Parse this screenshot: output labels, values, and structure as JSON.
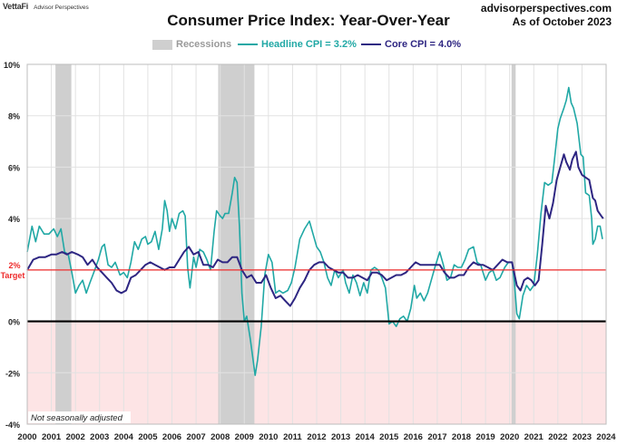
{
  "brand": {
    "name": "VettaFi",
    "sub": "Advisor Perspectives"
  },
  "header": {
    "title": "Consumer Price Index: Year-Over-Year",
    "site": "advisorperspectives.com",
    "as_of": "As of October 2023"
  },
  "legend": {
    "recessions": "Recessions",
    "headline": "Headline CPI = 3.2%",
    "core": "Core CPI =  4.0%"
  },
  "colors": {
    "headline": "#20a8a5",
    "core": "#2e2682",
    "recession": "#cfcfcf",
    "target_line": "#ee2b2b",
    "negative_zone": "#fde4e5"
  },
  "chart_data": {
    "type": "line",
    "title": "Consumer Price Index: Year-Over-Year",
    "xlim": [
      2000,
      2024
    ],
    "ylim": [
      -4,
      10
    ],
    "x_ticks": [
      "2000",
      "2001",
      "2002",
      "2003",
      "2004",
      "2005",
      "2006",
      "2007",
      "2008",
      "2009",
      "2010",
      "2011",
      "2012",
      "2013",
      "2014",
      "2015",
      "2016",
      "2017",
      "2018",
      "2019",
      "2020",
      "2021",
      "2022",
      "2023",
      "2024"
    ],
    "y_ticks": [
      "-4%",
      "-2%",
      "0%",
      "2%",
      "4%",
      "6%",
      "8%",
      "10%"
    ],
    "y_tick_values": [
      -4,
      -2,
      0,
      2,
      4,
      6,
      8,
      10
    ],
    "target": {
      "value": 2,
      "label_value": "2%",
      "label": "Target"
    },
    "recessions": [
      [
        2001.17,
        2001.83
      ],
      [
        2007.92,
        2009.42
      ],
      [
        2020.08,
        2020.25
      ]
    ],
    "note": "Not seasonally adjusted",
    "series": [
      {
        "name": "Headline CPI = 3.2%",
        "key": "headline",
        "points": [
          [
            2000.0,
            2.7
          ],
          [
            2000.2,
            3.7
          ],
          [
            2000.35,
            3.1
          ],
          [
            2000.5,
            3.7
          ],
          [
            2000.7,
            3.4
          ],
          [
            2000.9,
            3.4
          ],
          [
            2001.1,
            3.6
          ],
          [
            2001.25,
            3.3
          ],
          [
            2001.4,
            3.6
          ],
          [
            2001.55,
            2.7
          ],
          [
            2001.7,
            2.6
          ],
          [
            2001.85,
            1.9
          ],
          [
            2002.0,
            1.1
          ],
          [
            2002.15,
            1.4
          ],
          [
            2002.3,
            1.6
          ],
          [
            2002.45,
            1.1
          ],
          [
            2002.6,
            1.5
          ],
          [
            2002.8,
            2.0
          ],
          [
            2002.95,
            2.4
          ],
          [
            2003.1,
            2.9
          ],
          [
            2003.2,
            3.0
          ],
          [
            2003.35,
            2.2
          ],
          [
            2003.5,
            2.1
          ],
          [
            2003.65,
            2.3
          ],
          [
            2003.85,
            1.8
          ],
          [
            2004.0,
            1.9
          ],
          [
            2004.15,
            1.7
          ],
          [
            2004.3,
            2.3
          ],
          [
            2004.45,
            3.1
          ],
          [
            2004.6,
            2.8
          ],
          [
            2004.75,
            3.2
          ],
          [
            2004.9,
            3.3
          ],
          [
            2005.0,
            3.0
          ],
          [
            2005.15,
            3.1
          ],
          [
            2005.3,
            3.5
          ],
          [
            2005.45,
            2.8
          ],
          [
            2005.6,
            3.6
          ],
          [
            2005.7,
            4.7
          ],
          [
            2005.8,
            4.3
          ],
          [
            2005.9,
            3.5
          ],
          [
            2006.0,
            4.0
          ],
          [
            2006.15,
            3.6
          ],
          [
            2006.3,
            4.2
          ],
          [
            2006.45,
            4.3
          ],
          [
            2006.55,
            4.1
          ],
          [
            2006.65,
            2.1
          ],
          [
            2006.75,
            1.3
          ],
          [
            2006.9,
            2.5
          ],
          [
            2007.0,
            2.1
          ],
          [
            2007.15,
            2.8
          ],
          [
            2007.3,
            2.7
          ],
          [
            2007.45,
            2.4
          ],
          [
            2007.6,
            2.0
          ],
          [
            2007.75,
            3.5
          ],
          [
            2007.85,
            4.3
          ],
          [
            2008.0,
            4.1
          ],
          [
            2008.1,
            4.0
          ],
          [
            2008.2,
            4.2
          ],
          [
            2008.35,
            4.2
          ],
          [
            2008.5,
            5.0
          ],
          [
            2008.6,
            5.6
          ],
          [
            2008.7,
            5.4
          ],
          [
            2008.8,
            3.7
          ],
          [
            2008.9,
            1.1
          ],
          [
            2009.0,
            0.0
          ],
          [
            2009.1,
            0.2
          ],
          [
            2009.25,
            -0.7
          ],
          [
            2009.45,
            -2.1
          ],
          [
            2009.55,
            -1.5
          ],
          [
            2009.7,
            -0.2
          ],
          [
            2009.85,
            1.8
          ],
          [
            2010.0,
            2.6
          ],
          [
            2010.15,
            2.3
          ],
          [
            2010.3,
            1.1
          ],
          [
            2010.45,
            1.2
          ],
          [
            2010.6,
            1.1
          ],
          [
            2010.8,
            1.2
          ],
          [
            2010.95,
            1.5
          ],
          [
            2011.1,
            2.1
          ],
          [
            2011.3,
            3.2
          ],
          [
            2011.5,
            3.6
          ],
          [
            2011.7,
            3.9
          ],
          [
            2011.85,
            3.4
          ],
          [
            2012.0,
            2.9
          ],
          [
            2012.15,
            2.7
          ],
          [
            2012.3,
            2.3
          ],
          [
            2012.45,
            1.7
          ],
          [
            2012.6,
            1.4
          ],
          [
            2012.75,
            2.0
          ],
          [
            2012.9,
            1.7
          ],
          [
            2013.1,
            2.0
          ],
          [
            2013.2,
            1.5
          ],
          [
            2013.35,
            1.1
          ],
          [
            2013.5,
            1.8
          ],
          [
            2013.65,
            1.5
          ],
          [
            2013.8,
            1.0
          ],
          [
            2013.95,
            1.5
          ],
          [
            2014.1,
            1.1
          ],
          [
            2014.25,
            2.0
          ],
          [
            2014.4,
            2.1
          ],
          [
            2014.55,
            2.0
          ],
          [
            2014.7,
            1.7
          ],
          [
            2014.85,
            1.3
          ],
          [
            2015.0,
            -0.1
          ],
          [
            2015.15,
            0.0
          ],
          [
            2015.3,
            -0.2
          ],
          [
            2015.45,
            0.1
          ],
          [
            2015.6,
            0.2
          ],
          [
            2015.75,
            0.0
          ],
          [
            2015.9,
            0.5
          ],
          [
            2016.05,
            1.4
          ],
          [
            2016.15,
            0.9
          ],
          [
            2016.3,
            1.1
          ],
          [
            2016.45,
            0.8
          ],
          [
            2016.6,
            1.1
          ],
          [
            2016.75,
            1.6
          ],
          [
            2016.9,
            2.1
          ],
          [
            2017.1,
            2.7
          ],
          [
            2017.25,
            2.2
          ],
          [
            2017.4,
            1.6
          ],
          [
            2017.55,
            1.7
          ],
          [
            2017.7,
            2.2
          ],
          [
            2017.85,
            2.1
          ],
          [
            2018.0,
            2.1
          ],
          [
            2018.15,
            2.4
          ],
          [
            2018.3,
            2.8
          ],
          [
            2018.5,
            2.9
          ],
          [
            2018.65,
            2.3
          ],
          [
            2018.8,
            2.2
          ],
          [
            2018.9,
            1.9
          ],
          [
            2019.0,
            1.6
          ],
          [
            2019.15,
            1.9
          ],
          [
            2019.3,
            2.0
          ],
          [
            2019.45,
            1.6
          ],
          [
            2019.6,
            1.7
          ],
          [
            2019.8,
            2.1
          ],
          [
            2019.95,
            2.3
          ],
          [
            2020.1,
            2.3
          ],
          [
            2020.2,
            1.5
          ],
          [
            2020.3,
            0.3
          ],
          [
            2020.4,
            0.1
          ],
          [
            2020.55,
            1.0
          ],
          [
            2020.7,
            1.4
          ],
          [
            2020.85,
            1.2
          ],
          [
            2021.0,
            1.4
          ],
          [
            2021.15,
            2.6
          ],
          [
            2021.3,
            4.2
          ],
          [
            2021.45,
            5.4
          ],
          [
            2021.6,
            5.3
          ],
          [
            2021.75,
            5.4
          ],
          [
            2021.85,
            6.2
          ],
          [
            2022.0,
            7.5
          ],
          [
            2022.1,
            7.9
          ],
          [
            2022.25,
            8.3
          ],
          [
            2022.35,
            8.6
          ],
          [
            2022.45,
            9.1
          ],
          [
            2022.55,
            8.5
          ],
          [
            2022.65,
            8.3
          ],
          [
            2022.8,
            7.7
          ],
          [
            2022.95,
            6.5
          ],
          [
            2023.05,
            6.4
          ],
          [
            2023.15,
            5.0
          ],
          [
            2023.3,
            4.9
          ],
          [
            2023.4,
            4.0
          ],
          [
            2023.45,
            3.0
          ],
          [
            2023.55,
            3.2
          ],
          [
            2023.65,
            3.7
          ],
          [
            2023.75,
            3.7
          ],
          [
            2023.85,
            3.2
          ]
        ]
      },
      {
        "name": "Core CPI =  4.0%",
        "key": "core",
        "points": [
          [
            2000.0,
            2.0
          ],
          [
            2000.25,
            2.4
          ],
          [
            2000.5,
            2.5
          ],
          [
            2000.75,
            2.5
          ],
          [
            2001.0,
            2.6
          ],
          [
            2001.2,
            2.6
          ],
          [
            2001.45,
            2.7
          ],
          [
            2001.65,
            2.6
          ],
          [
            2001.85,
            2.7
          ],
          [
            2002.1,
            2.6
          ],
          [
            2002.3,
            2.5
          ],
          [
            2002.5,
            2.2
          ],
          [
            2002.7,
            2.4
          ],
          [
            2002.9,
            2.1
          ],
          [
            2003.1,
            1.9
          ],
          [
            2003.3,
            1.7
          ],
          [
            2003.5,
            1.5
          ],
          [
            2003.7,
            1.2
          ],
          [
            2003.9,
            1.1
          ],
          [
            2004.1,
            1.2
          ],
          [
            2004.3,
            1.7
          ],
          [
            2004.5,
            1.8
          ],
          [
            2004.7,
            2.0
          ],
          [
            2004.9,
            2.2
          ],
          [
            2005.1,
            2.3
          ],
          [
            2005.3,
            2.2
          ],
          [
            2005.5,
            2.1
          ],
          [
            2005.7,
            2.0
          ],
          [
            2005.9,
            2.1
          ],
          [
            2006.1,
            2.1
          ],
          [
            2006.3,
            2.4
          ],
          [
            2006.5,
            2.7
          ],
          [
            2006.7,
            2.9
          ],
          [
            2006.9,
            2.6
          ],
          [
            2007.1,
            2.7
          ],
          [
            2007.3,
            2.2
          ],
          [
            2007.5,
            2.2
          ],
          [
            2007.7,
            2.1
          ],
          [
            2007.9,
            2.4
          ],
          [
            2008.1,
            2.3
          ],
          [
            2008.3,
            2.3
          ],
          [
            2008.5,
            2.5
          ],
          [
            2008.7,
            2.5
          ],
          [
            2008.9,
            2.0
          ],
          [
            2009.1,
            1.7
          ],
          [
            2009.3,
            1.8
          ],
          [
            2009.5,
            1.5
          ],
          [
            2009.7,
            1.5
          ],
          [
            2009.9,
            1.8
          ],
          [
            2010.1,
            1.3
          ],
          [
            2010.3,
            0.9
          ],
          [
            2010.5,
            1.0
          ],
          [
            2010.7,
            0.8
          ],
          [
            2010.9,
            0.6
          ],
          [
            2011.1,
            0.9
          ],
          [
            2011.3,
            1.3
          ],
          [
            2011.5,
            1.6
          ],
          [
            2011.7,
            2.0
          ],
          [
            2011.9,
            2.2
          ],
          [
            2012.1,
            2.3
          ],
          [
            2012.3,
            2.3
          ],
          [
            2012.5,
            2.1
          ],
          [
            2012.7,
            2.0
          ],
          [
            2012.9,
            1.9
          ],
          [
            2013.1,
            1.9
          ],
          [
            2013.3,
            1.7
          ],
          [
            2013.5,
            1.7
          ],
          [
            2013.7,
            1.8
          ],
          [
            2013.9,
            1.7
          ],
          [
            2014.1,
            1.6
          ],
          [
            2014.3,
            1.9
          ],
          [
            2014.5,
            1.9
          ],
          [
            2014.7,
            1.8
          ],
          [
            2014.9,
            1.6
          ],
          [
            2015.1,
            1.7
          ],
          [
            2015.3,
            1.8
          ],
          [
            2015.5,
            1.8
          ],
          [
            2015.7,
            1.9
          ],
          [
            2015.9,
            2.1
          ],
          [
            2016.1,
            2.3
          ],
          [
            2016.3,
            2.2
          ],
          [
            2016.5,
            2.2
          ],
          [
            2016.7,
            2.2
          ],
          [
            2016.9,
            2.2
          ],
          [
            2017.1,
            2.2
          ],
          [
            2017.3,
            1.9
          ],
          [
            2017.5,
            1.7
          ],
          [
            2017.7,
            1.7
          ],
          [
            2017.9,
            1.8
          ],
          [
            2018.1,
            1.8
          ],
          [
            2018.3,
            2.1
          ],
          [
            2018.5,
            2.3
          ],
          [
            2018.7,
            2.2
          ],
          [
            2018.9,
            2.2
          ],
          [
            2019.1,
            2.1
          ],
          [
            2019.3,
            2.0
          ],
          [
            2019.5,
            2.2
          ],
          [
            2019.7,
            2.4
          ],
          [
            2019.9,
            2.3
          ],
          [
            2020.1,
            2.3
          ],
          [
            2020.3,
            1.4
          ],
          [
            2020.45,
            1.2
          ],
          [
            2020.6,
            1.6
          ],
          [
            2020.75,
            1.7
          ],
          [
            2020.9,
            1.6
          ],
          [
            2021.05,
            1.4
          ],
          [
            2021.2,
            1.6
          ],
          [
            2021.35,
            3.0
          ],
          [
            2021.5,
            4.5
          ],
          [
            2021.65,
            4.0
          ],
          [
            2021.8,
            4.6
          ],
          [
            2021.95,
            5.5
          ],
          [
            2022.1,
            6.0
          ],
          [
            2022.25,
            6.5
          ],
          [
            2022.35,
            6.2
          ],
          [
            2022.5,
            5.9
          ],
          [
            2022.6,
            6.3
          ],
          [
            2022.75,
            6.6
          ],
          [
            2022.85,
            6.0
          ],
          [
            2023.0,
            5.7
          ],
          [
            2023.15,
            5.6
          ],
          [
            2023.3,
            5.5
          ],
          [
            2023.45,
            4.8
          ],
          [
            2023.55,
            4.7
          ],
          [
            2023.65,
            4.3
          ],
          [
            2023.8,
            4.1
          ],
          [
            2023.88,
            4.0
          ]
        ]
      }
    ]
  }
}
